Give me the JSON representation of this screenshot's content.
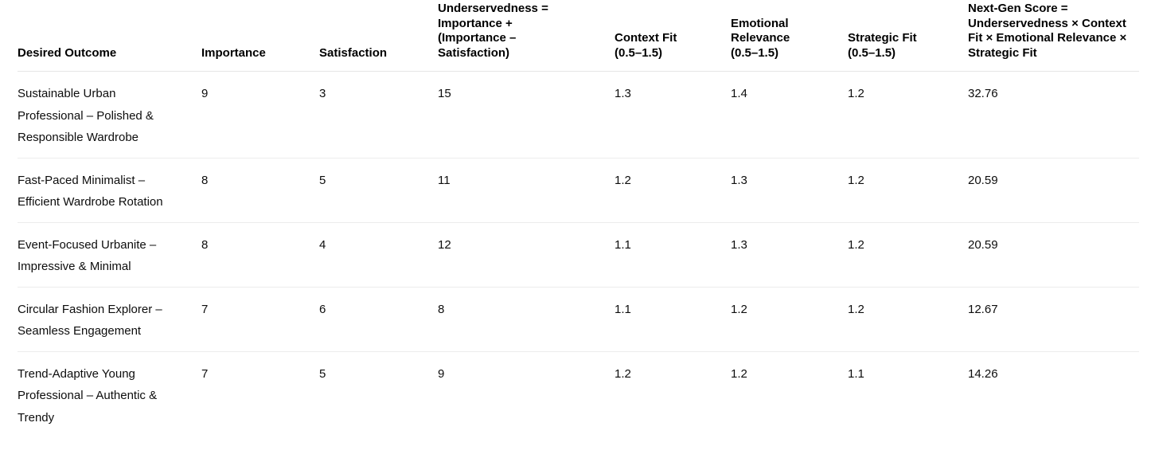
{
  "table": {
    "columns": [
      {
        "label": "Desired Outcome"
      },
      {
        "label": "Importance"
      },
      {
        "label": "Satisfaction"
      },
      {
        "label": "Underservedness = Importance + (Importance – Satisfaction)"
      },
      {
        "label": "Context Fit (0.5–1.5)"
      },
      {
        "label": "Emotional Relevance (0.5–1.5)"
      },
      {
        "label": "Strategic Fit (0.5–1.5)"
      },
      {
        "label": "Next-Gen Score = Underservedness × Context Fit × Emotional Relevance × Strategic Fit"
      }
    ],
    "rows": [
      [
        "Sustainable Urban Professional – Polished & Responsible Wardrobe",
        "9",
        "3",
        "15",
        "1.3",
        "1.4",
        "1.2",
        "32.76"
      ],
      [
        "Fast-Paced Minimalist – Efficient Wardrobe Rotation",
        "8",
        "5",
        "11",
        "1.2",
        "1.3",
        "1.2",
        "20.59"
      ],
      [
        "Event-Focused Urbanite – Impressive & Minimal",
        "8",
        "4",
        "12",
        "1.1",
        "1.3",
        "1.2",
        "20.59"
      ],
      [
        "Circular Fashion Explorer – Seamless Engagement",
        "7",
        "6",
        "8",
        "1.1",
        "1.2",
        "1.2",
        "12.67"
      ],
      [
        "Trend-Adaptive Young Professional – Authentic & Trendy",
        "7",
        "5",
        "9",
        "1.2",
        "1.2",
        "1.1",
        "14.26"
      ]
    ],
    "colors": {
      "header_text": "#000000",
      "body_text": "#0d0d0d",
      "header_border": "#e6e6e6",
      "row_border": "#ececec",
      "background": "#ffffff"
    }
  }
}
